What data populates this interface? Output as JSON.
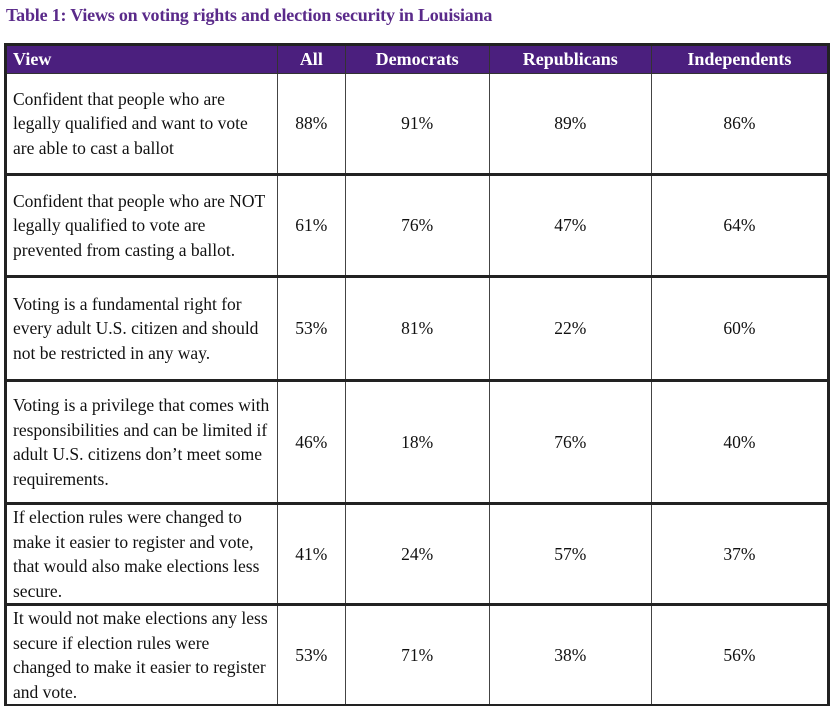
{
  "title": "Table 1: Views on voting rights and election security in Louisiana",
  "headers": [
    "View",
    "All",
    "Democrats",
    "Republicans",
    "Independents"
  ],
  "rows": [
    {
      "view": "Confident that people who are legally qualified and want to vote are able to cast a ballot",
      "all": "88%",
      "dem": "91%",
      "rep": "89%",
      "ind": "86%"
    },
    {
      "view": "Confident that people who are NOT legally qualified to vote are prevented from casting a ballot.",
      "all": "61%",
      "dem": "76%",
      "rep": "47%",
      "ind": "64%"
    },
    {
      "view": "Voting is a fundamental right for every adult U.S. citizen and should not be restricted in any way.",
      "all": "53%",
      "dem": "81%",
      "rep": "22%",
      "ind": "60%"
    },
    {
      "view": "Voting is a privilege that comes with responsibilities and can be limited if adult U.S. citizens don’t meet some requirements.",
      "all": "46%",
      "dem": "18%",
      "rep": "76%",
      "ind": "40%"
    },
    {
      "view": "If election rules were changed to make it easier to register and vote, that would also make elections less secure.",
      "all": "41%",
      "dem": "24%",
      "rep": "57%",
      "ind": "37%"
    },
    {
      "view": "It would not make elections any less secure if election rules were changed to make it easier to register and vote.",
      "all": "53%",
      "dem": "71%",
      "rep": "38%",
      "ind": "56%"
    }
  ]
}
